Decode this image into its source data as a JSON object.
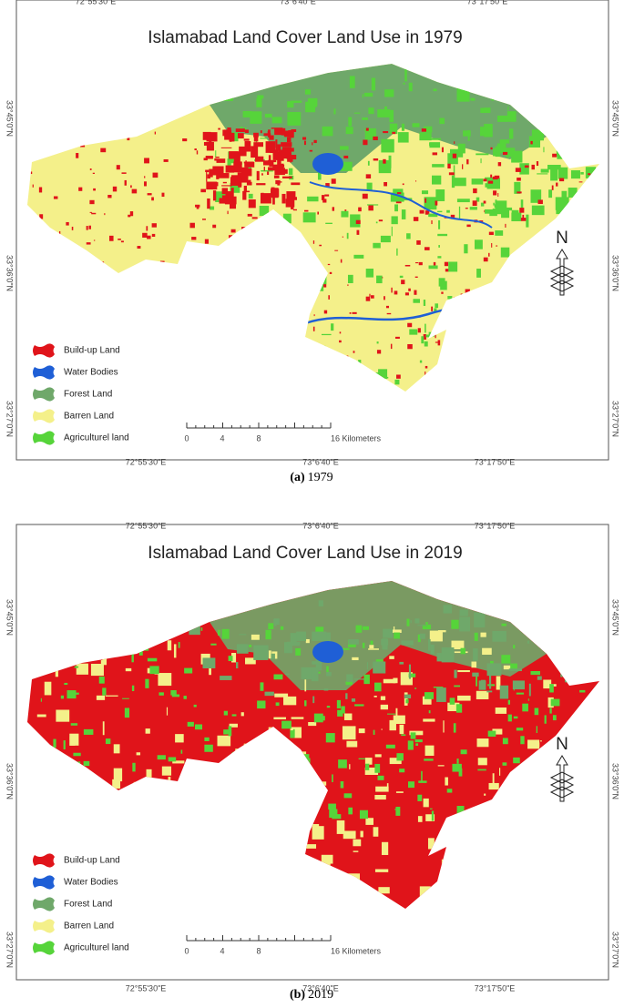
{
  "panels": [
    {
      "title": "Islamabad Land Cover Land Use in 1979",
      "caption": {
        "tag": "(a)",
        "year": "1979"
      },
      "legend": [
        {
          "label": "Build-up Land",
          "color": "#e0141a"
        },
        {
          "label": "Water Bodies",
          "color": "#1f5fd6"
        },
        {
          "label": "Forest Land",
          "color": "#6fa86a"
        },
        {
          "label": "Barren Land",
          "color": "#f4f08a"
        },
        {
          "label": "Agriculturel land",
          "color": "#56d43a"
        }
      ],
      "scale": [
        "0",
        "4",
        "8",
        "16 Kilometers"
      ],
      "north": "N",
      "coords": {
        "top": [
          "72°55'30\"E",
          "73°6'40\"E",
          "73°17'50\"E"
        ],
        "bottom": [
          "72°55'30\"E",
          "73°6'40\"E",
          "73°17'50\"E"
        ],
        "left": [
          "33°45'0\"N",
          "33°36'0\"N",
          "33°27'0\"N"
        ],
        "right": [
          "33°45'0\"N",
          "33°36'0\"N",
          "33°27'0\"N"
        ]
      }
    },
    {
      "title": "Islamabad Land Cover Land Use in 2019",
      "caption": {
        "tag": "(b)",
        "year": "2019"
      },
      "legend": [
        {
          "label": "Build-up Land",
          "color": "#e0141a"
        },
        {
          "label": "Water Bodies",
          "color": "#1f5fd6"
        },
        {
          "label": "Forest Land",
          "color": "#6fa86a"
        },
        {
          "label": "Barren Land",
          "color": "#f4f08a"
        },
        {
          "label": "Agriculturel land",
          "color": "#56d43a"
        }
      ],
      "scale": [
        "0",
        "4",
        "8",
        "16 Kilometers"
      ],
      "north": "N",
      "coords": {
        "top": [
          "72°55'30\"E",
          "73°6'40\"E",
          "73°17'50\"E"
        ],
        "bottom": [
          "72°55'30\"E",
          "73°6'40\"E",
          "73°17'50\"E"
        ],
        "left": [
          "33°45'0\"N",
          "33°36'0\"N",
          "33°27'0\"N"
        ],
        "right": [
          "33°45'0\"N",
          "33°36'0\"N",
          "33°27'0\"N"
        ]
      }
    }
  ]
}
